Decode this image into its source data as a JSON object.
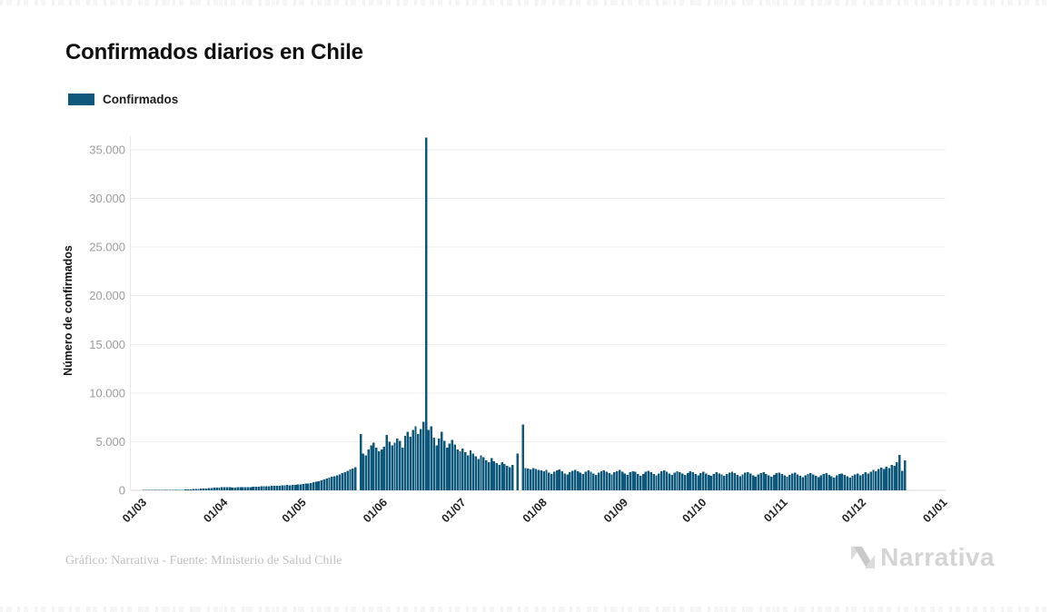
{
  "page": {
    "title": "Confirmados diarios en Chile"
  },
  "legend": {
    "label": "Confirmados",
    "swatch_color": "#0e587c"
  },
  "footer": {
    "credit": "Gráfico: Narrativa - Fuente: Ministerio de Salud Chile",
    "brand": "Narrativa"
  },
  "chart_data": {
    "type": "bar",
    "title": "Confirmados diarios en Chile",
    "xlabel": "",
    "ylabel": "Número de confirmados",
    "ylim": [
      0,
      36500
    ],
    "grid": true,
    "legend_position": "top-left",
    "bar_color": "#0e587c",
    "background_color": "#ffffff",
    "y_ticks": [
      0,
      5000,
      10000,
      15000,
      20000,
      25000,
      30000,
      35000
    ],
    "y_tick_labels": [
      "0",
      "5.000",
      "10.000",
      "15.000",
      "20.000",
      "25.000",
      "30.000",
      "35.000"
    ],
    "x_ticks": [
      {
        "label": "01/03",
        "day": 0
      },
      {
        "label": "01/04",
        "day": 31
      },
      {
        "label": "01/05",
        "day": 61
      },
      {
        "label": "01/06",
        "day": 92
      },
      {
        "label": "01/07",
        "day": 122
      },
      {
        "label": "01/08",
        "day": 153
      },
      {
        "label": "01/09",
        "day": 184
      },
      {
        "label": "01/10",
        "day": 214
      },
      {
        "label": "01/11",
        "day": 245
      },
      {
        "label": "01/12",
        "day": 275
      },
      {
        "label": "01/01",
        "day": 306
      }
    ],
    "series": [
      {
        "name": "Confirmados",
        "values": [
          2,
          3,
          3,
          4,
          5,
          6,
          8,
          10,
          13,
          17,
          21,
          26,
          32,
          40,
          50,
          62,
          75,
          90,
          105,
          120,
          135,
          150,
          165,
          180,
          200,
          220,
          240,
          260,
          280,
          300,
          310,
          320,
          330,
          310,
          300,
          290,
          310,
          330,
          340,
          330,
          320,
          350,
          370,
          360,
          380,
          400,
          420,
          440,
          430,
          450,
          470,
          490,
          480,
          500,
          520,
          540,
          520,
          550,
          570,
          590,
          610,
          640,
          680,
          720,
          760,
          820,
          880,
          940,
          1020,
          1100,
          1200,
          1300,
          1380,
          1450,
          1550,
          1650,
          1760,
          1880,
          2000,
          2130,
          2260,
          2400,
          0,
          5780,
          3800,
          3600,
          4200,
          4600,
          4900,
          4400,
          4000,
          4200,
          4500,
          5700,
          5000,
          4600,
          4900,
          5300,
          5100,
          4400,
          5600,
          6000,
          5500,
          6200,
          6600,
          5800,
          6300,
          7050,
          36245,
          6200,
          6600,
          5400,
          4600,
          5300,
          6000,
          5100,
          4400,
          4800,
          5200,
          4700,
          4200,
          4000,
          4300,
          3900,
          3600,
          4100,
          3800,
          3500,
          3200,
          3600,
          3400,
          3100,
          2900,
          3300,
          3000,
          2800,
          2600,
          2900,
          2700,
          2500,
          2400,
          2600,
          0,
          3800,
          0,
          6750,
          2300,
          2250,
          2150,
          2300,
          2200,
          2100,
          2050,
          1950,
          2100,
          1800,
          1700,
          1900,
          2050,
          2150,
          1980,
          1750,
          1650,
          1850,
          2000,
          2100,
          1950,
          1800,
          1700,
          1900,
          2050,
          1900,
          1750,
          1600,
          1800,
          1950,
          2050,
          1900,
          1780,
          1650,
          1850,
          1980,
          2080,
          1900,
          1750,
          1600,
          1850,
          1980,
          1900,
          1700,
          1500,
          1700,
          1900,
          2000,
          1850,
          1700,
          1550,
          1750,
          1950,
          2050,
          1900,
          1750,
          1600,
          1800,
          1980,
          1880,
          1720,
          1580,
          1780,
          1950,
          1850,
          1700,
          1560,
          1760,
          1900,
          1750,
          1600,
          1500,
          1700,
          1850,
          1750,
          1620,
          1480,
          1680,
          1820,
          1900,
          1760,
          1600,
          1450,
          1650,
          1800,
          1880,
          1720,
          1560,
          1420,
          1620,
          1780,
          1850,
          1700,
          1540,
          1400,
          1600,
          1760,
          1840,
          1680,
          1520,
          1380,
          1580,
          1720,
          1800,
          1650,
          1500,
          1360,
          1560,
          1700,
          1780,
          1620,
          1480,
          1340,
          1540,
          1680,
          1760,
          1600,
          1460,
          1320,
          1520,
          1660,
          1740,
          1580,
          1440,
          1300,
          1500,
          1640,
          1720,
          1560,
          1700,
          1850,
          1750,
          1900,
          2100,
          1950,
          2200,
          2350,
          2200,
          2450,
          2300,
          2600,
          2500,
          2900,
          3650,
          2000,
          3100
        ]
      }
    ]
  }
}
